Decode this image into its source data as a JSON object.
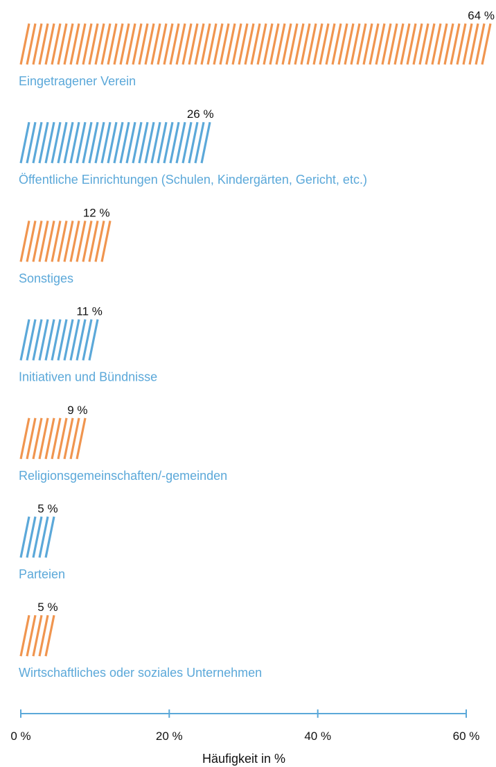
{
  "chart_data": {
    "type": "bar",
    "orientation": "horizontal",
    "categories": [
      "Eingetragener Verein",
      "Öffentliche Einrichtungen (Schulen, Kindergärten, Gericht, etc.)",
      "Sonstiges",
      "Initiativen und Bündnisse",
      "Religionsgemeinschaften/-gemeinden",
      "Parteien",
      "Wirtschaftliches oder soziales Unternehmen"
    ],
    "values": [
      64,
      26,
      12,
      11,
      9,
      5,
      5
    ],
    "value_labels": [
      "64 %",
      "26 %",
      "12 %",
      "11 %",
      "9 %",
      "5 %",
      "5 %"
    ],
    "bar_colors": [
      "#f0954f",
      "#5ba8d9",
      "#f0954f",
      "#5ba8d9",
      "#f0954f",
      "#5ba8d9",
      "#f0954f"
    ],
    "label_color": "#5ba8d9",
    "axis_color": "#5ba8d9",
    "xlabel": "Häufigkeit in %",
    "xlim": [
      0,
      60
    ],
    "xticks": [
      0,
      20,
      40,
      60
    ],
    "xtick_labels": [
      "0 %",
      "20 %",
      "40 %",
      "60 %"
    ],
    "grid": false,
    "legend": "none",
    "bar_pattern": "diagonal-hatch"
  }
}
